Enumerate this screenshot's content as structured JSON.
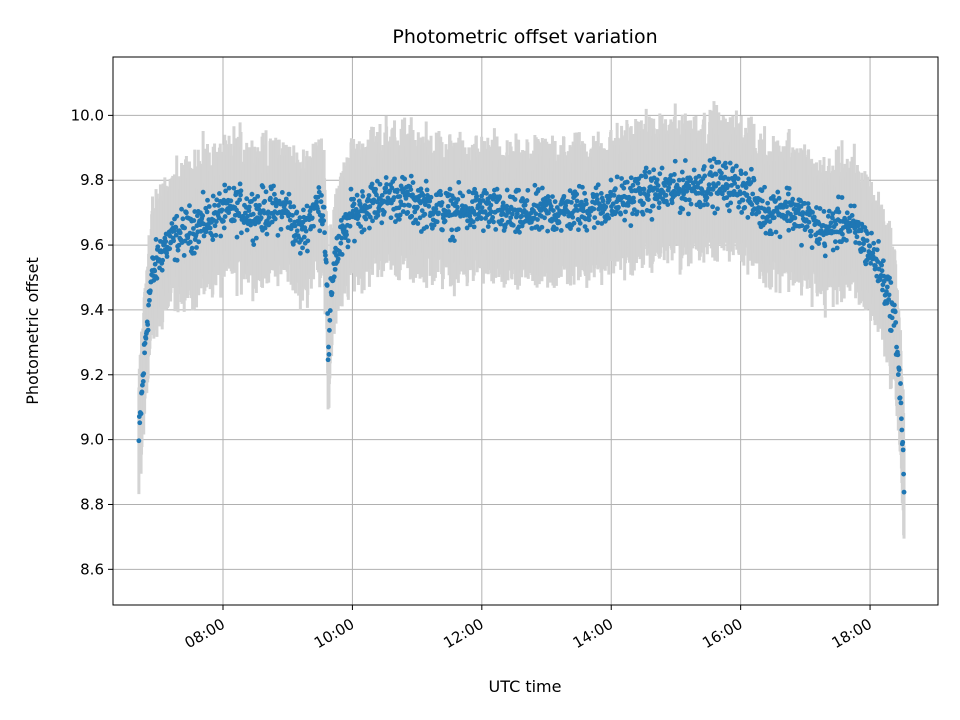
{
  "chart_data": {
    "type": "scatter",
    "title": "Photometric offset variation",
    "xlabel": "UTC time",
    "ylabel": "Photometric offset",
    "x_unit": "hours UTC",
    "xlim": [
      6.3,
      19.05
    ],
    "ylim": [
      8.49,
      10.18
    ],
    "xticks": [
      {
        "value": 8,
        "label": "08:00"
      },
      {
        "value": 10,
        "label": "10:00"
      },
      {
        "value": 12,
        "label": "12:00"
      },
      {
        "value": 14,
        "label": "14:00"
      },
      {
        "value": 16,
        "label": "16:00"
      },
      {
        "value": 18,
        "label": "18:00"
      }
    ],
    "yticks": [
      {
        "value": 8.6,
        "label": "8.6"
      },
      {
        "value": 8.8,
        "label": "8.8"
      },
      {
        "value": 9.0,
        "label": "9.0"
      },
      {
        "value": 9.2,
        "label": "9.2"
      },
      {
        "value": 9.4,
        "label": "9.4"
      },
      {
        "value": 9.6,
        "label": "9.6"
      },
      {
        "value": 9.8,
        "label": "9.8"
      },
      {
        "value": 10.0,
        "label": "10.0"
      }
    ],
    "grid": true,
    "marker_color": "#1f77b4",
    "errorbar_color": "#d3d3d3",
    "error_half_width": 0.16,
    "trend": {
      "x": [
        6.7,
        6.75,
        6.8,
        6.85,
        6.9,
        7.0,
        7.1,
        7.25,
        7.4,
        7.6,
        7.8,
        8.0,
        8.25,
        8.5,
        8.8,
        9.0,
        9.1,
        9.2,
        9.3,
        9.4,
        9.5,
        9.55,
        9.6,
        9.63,
        9.66,
        9.7,
        9.75,
        9.8,
        9.9,
        10.0,
        10.3,
        10.6,
        11.0,
        11.5,
        12.0,
        12.5,
        13.0,
        13.5,
        14.0,
        14.5,
        15.0,
        15.5,
        16.0,
        16.2,
        16.4,
        16.7,
        17.0,
        17.3,
        17.6,
        17.8,
        17.95,
        18.1,
        18.2,
        18.3,
        18.4,
        18.45,
        18.5,
        18.53
      ],
      "y": [
        8.99,
        9.15,
        9.3,
        9.42,
        9.5,
        9.56,
        9.6,
        9.62,
        9.64,
        9.66,
        9.68,
        9.7,
        9.71,
        9.7,
        9.71,
        9.71,
        9.66,
        9.63,
        9.67,
        9.71,
        9.73,
        9.72,
        9.55,
        9.22,
        9.4,
        9.52,
        9.58,
        9.6,
        9.64,
        9.7,
        9.73,
        9.75,
        9.73,
        9.7,
        9.71,
        9.69,
        9.7,
        9.71,
        9.73,
        9.76,
        9.77,
        9.79,
        9.78,
        9.74,
        9.7,
        9.72,
        9.68,
        9.64,
        9.67,
        9.64,
        9.6,
        9.55,
        9.5,
        9.44,
        9.34,
        9.2,
        9.0,
        8.85
      ]
    },
    "sample_step": 0.0068,
    "noise_amplitude": 0.035
  }
}
